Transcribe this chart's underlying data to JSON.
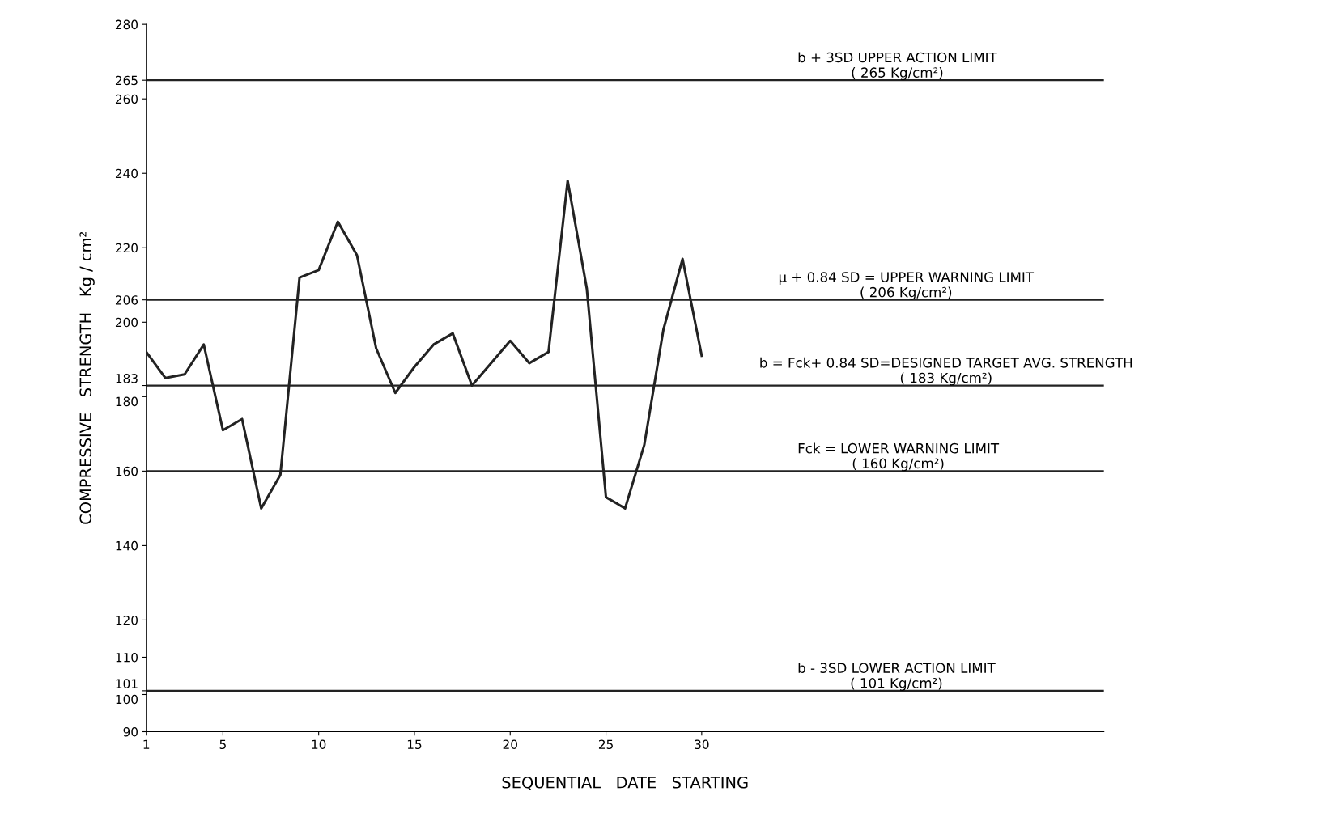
{
  "chart_data": {
    "type": "line",
    "xlabel": "SEQUENTIAL   DATE   STARTING",
    "ylabel": "COMPRESSIVE   STRENGTH   Kg / cm²",
    "x": [
      1,
      2,
      3,
      4,
      5,
      6,
      7,
      8,
      9,
      10,
      11,
      12,
      13,
      14,
      15,
      16,
      17,
      18,
      19,
      20,
      21,
      22,
      23,
      24,
      25,
      26,
      27,
      28,
      29,
      30
    ],
    "series": [
      {
        "color": "#222222",
        "values": [
          192,
          185,
          186,
          194,
          171,
          174,
          150,
          159,
          212,
          214,
          227,
          218,
          193,
          181,
          188,
          194,
          197,
          183,
          189,
          195,
          189,
          192,
          238,
          209,
          153,
          150,
          167,
          198,
          217,
          191
        ]
      }
    ],
    "xlim": [
      1,
      51
    ],
    "xticks": [
      1,
      5,
      10,
      15,
      20,
      25,
      30
    ],
    "ylim": [
      90,
      280
    ],
    "yticks": [
      90,
      100,
      101,
      110,
      120,
      140,
      160,
      180,
      183,
      200,
      206,
      220,
      240,
      260,
      265,
      280
    ],
    "ref_lines": [
      {
        "axis": "y",
        "value": 265,
        "label": "b + 3SD UPPER ACTION LIMIT\n( 265 Kg/cm²)",
        "color": "#222222"
      },
      {
        "axis": "y",
        "value": 206,
        "label": "μ + 0.84 SD = UPPER WARNING LIMIT\n( 206 Kg/cm²)",
        "color": "#222222"
      },
      {
        "axis": "y",
        "value": 183,
        "label": "b = Fck+ 0.84 SD=DESIGNED TARGET AVG. STRENGTH\n( 183 Kg/cm²)",
        "color": "#222222"
      },
      {
        "axis": "y",
        "value": 160,
        "label": "Fck = LOWER WARNING LIMIT\n( 160 Kg/cm²)",
        "color": "#222222"
      },
      {
        "axis": "y",
        "value": 101,
        "label": "b - 3SD LOWER ACTION LIMIT\n( 101 Kg/cm²)",
        "color": "#222222"
      }
    ],
    "grid": false,
    "marker": "none",
    "line_style": "solid"
  }
}
